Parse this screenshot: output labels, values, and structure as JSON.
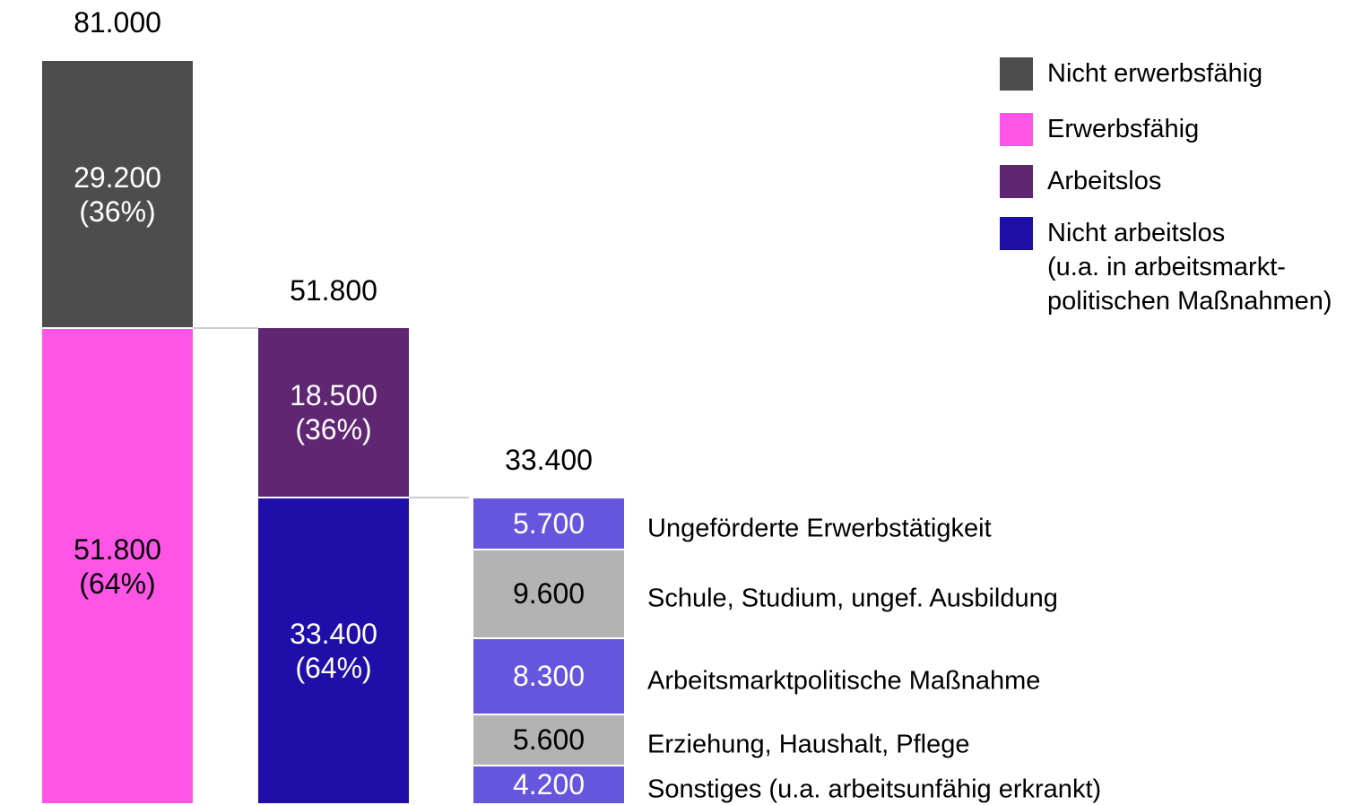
{
  "chart_data": {
    "type": "cascade",
    "ylim": [
      0,
      81000
    ],
    "columns": [
      {
        "total": 81000,
        "total_label": "81.000",
        "label_position": "legend",
        "segments": [
          {
            "name": "Nicht erwerbsfähig",
            "color": "#4d4d4d",
            "value": 29200,
            "value_label": "29.200",
            "share_label": "(36%)"
          },
          {
            "name": "Erwerbsfähig",
            "color": "#ff55e6",
            "value": 51800,
            "value_label": "51.800",
            "share_label": "(64%)"
          }
        ]
      },
      {
        "total": 51800,
        "total_label": "51.800",
        "label_position": "legend",
        "segments": [
          {
            "name": "Arbeitslos",
            "color": "#5f2672",
            "value": 18500,
            "value_label": "18.500",
            "share_label": "(36%)"
          },
          {
            "name": "Nicht arbeitslos\n(u.a. in arbeitsmarkt-\npolitischen Maßnahmen)",
            "color": "#1f0fa8",
            "value": 33400,
            "value_label": "33.400",
            "share_label": "(64%)"
          }
        ]
      },
      {
        "total": 33400,
        "total_label": "33.400",
        "label_position": "right",
        "segments": [
          {
            "name": "Ungeförderte Erwerbstätigkeit",
            "color": "#6655dd",
            "value": 5700,
            "value_label": "5.700"
          },
          {
            "name": "Schule, Studium, ungef. Ausbildung",
            "color": "#b3b3b3",
            "value": 9600,
            "value_label": "9.600"
          },
          {
            "name": "Arbeitsmarktpolitische Maßnahme",
            "color": "#6655dd",
            "value": 8300,
            "value_label": "8.300"
          },
          {
            "name": "Erziehung, Haushalt, Pflege",
            "color": "#b3b3b3",
            "value": 5600,
            "value_label": "5.600"
          },
          {
            "name": "Sonstiges (u.a. arbeitsunfähig erkrankt)",
            "color": "#6655dd",
            "value": 4200,
            "value_label": "4.200"
          }
        ]
      }
    ]
  }
}
